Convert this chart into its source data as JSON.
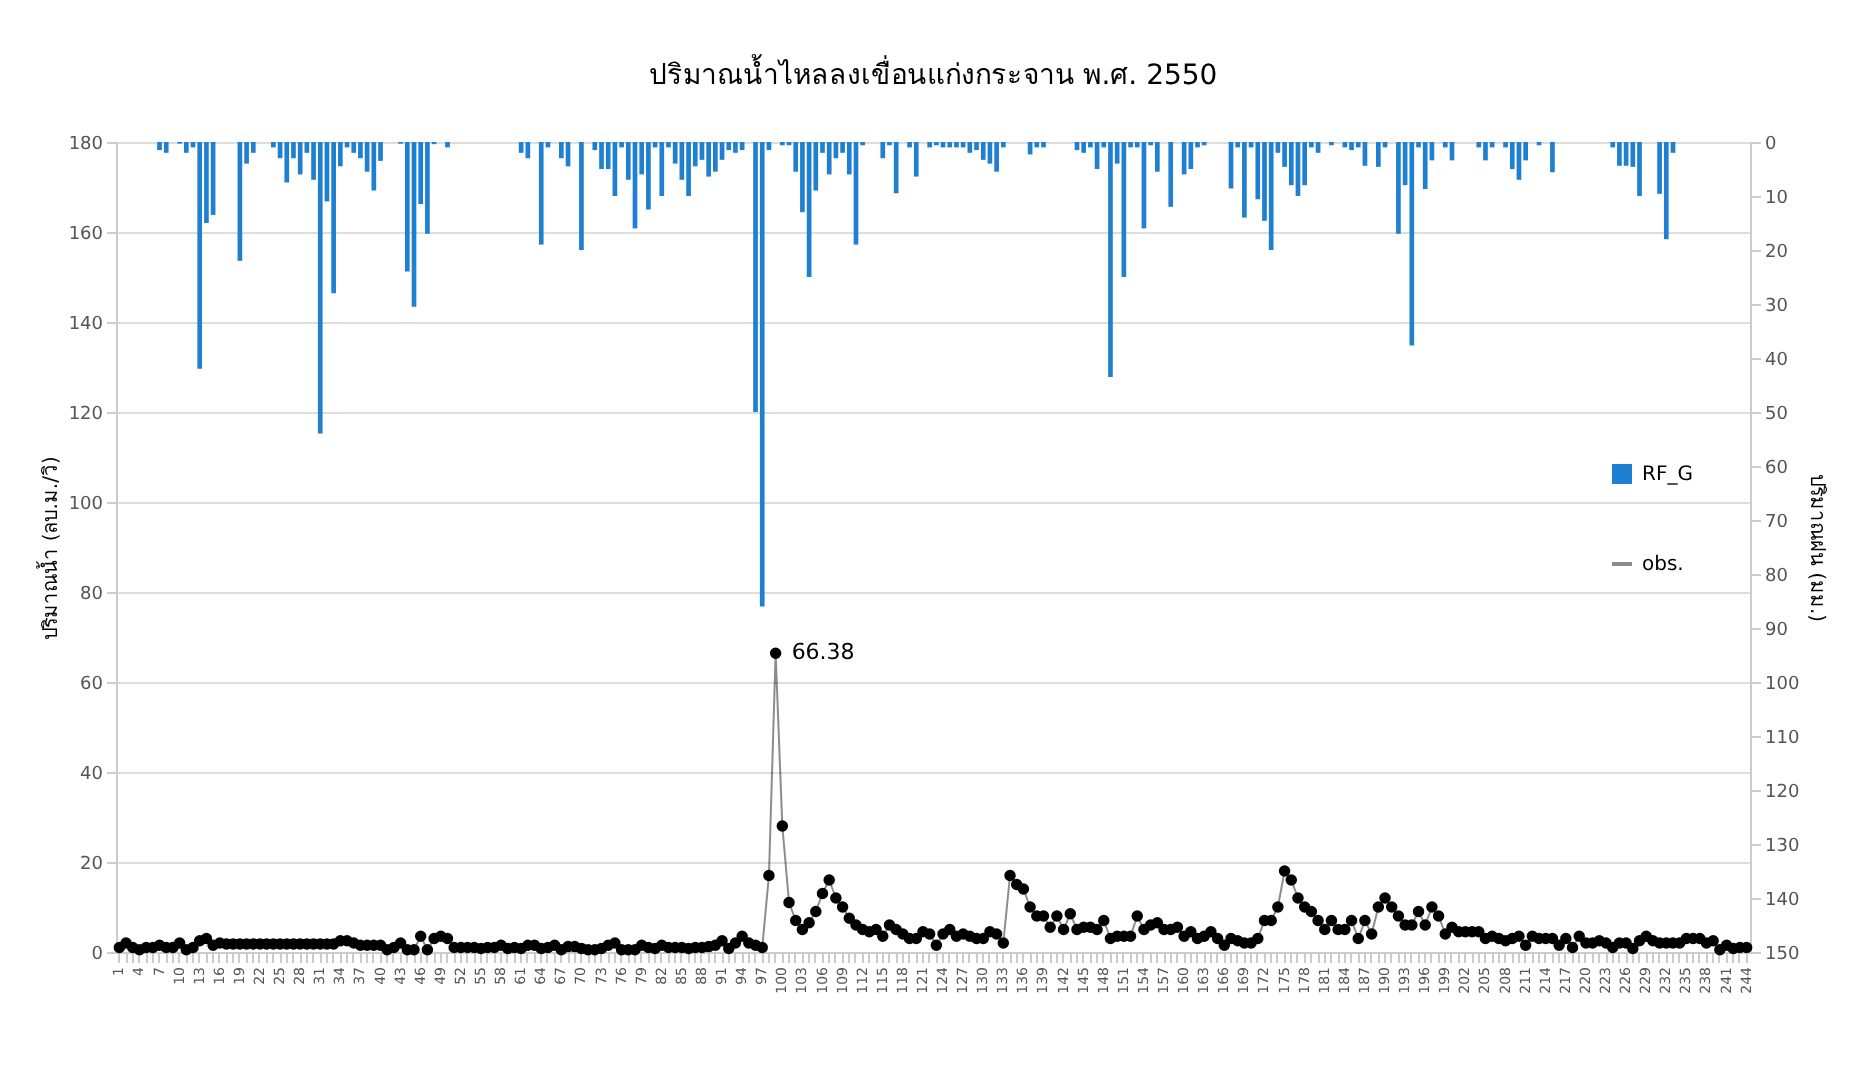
{
  "chart_data": {
    "type": "line",
    "title": "ปริมาณน้ำไหลลงเขื่อนแก่งกระจาน พ.ศ. 2550",
    "ylabel": "ปริมาณน้ำ (ลบ.ม./วิ)",
    "y2label": "ปริมาณฝน (มม.)",
    "categories": [
      "1",
      null,
      null,
      "4",
      null,
      null,
      "7",
      null,
      null,
      "10",
      null,
      null,
      "13",
      null,
      null,
      "16",
      null,
      null,
      "19",
      null,
      null,
      "22",
      null,
      null,
      "25",
      null,
      null,
      "28",
      null,
      null,
      "31",
      null,
      null,
      "34",
      null,
      null,
      "37",
      null,
      null,
      "40",
      null,
      null,
      "43",
      null,
      null,
      "46",
      null,
      null,
      "49",
      null,
      null,
      "52",
      null,
      null,
      "55",
      null,
      null,
      "58",
      null,
      null,
      "61",
      null,
      null,
      "64",
      null,
      null,
      "67",
      null,
      null,
      "70",
      null,
      null,
      "73",
      null,
      null,
      "76",
      null,
      null,
      "79",
      null,
      null,
      "82",
      null,
      null,
      "85",
      null,
      null,
      "88",
      null,
      null,
      "91",
      null,
      null,
      "94",
      null,
      null,
      "97",
      null,
      null,
      "100",
      null,
      null,
      "103",
      null,
      null,
      "106",
      null,
      null,
      "109",
      null,
      null,
      "112",
      null,
      null,
      "115",
      null,
      null,
      "118",
      null,
      null,
      "121",
      null,
      null,
      "124",
      null,
      null,
      "127",
      null,
      null,
      "130",
      null,
      null,
      "133",
      null,
      null,
      "136",
      null,
      null,
      "139",
      null,
      null,
      "142",
      null,
      null,
      "145",
      null,
      null,
      "148",
      null,
      null,
      "151",
      null,
      null,
      "154",
      null,
      null,
      "157",
      null,
      null,
      "160",
      null,
      null,
      "163",
      null,
      null,
      "166",
      null,
      null,
      "169",
      null,
      null,
      "172",
      null,
      null,
      "175",
      null,
      null,
      "178",
      null,
      null,
      "181",
      null,
      null,
      "184",
      null,
      null,
      "187",
      null,
      null,
      "190",
      null,
      null,
      "193",
      null,
      null,
      "196",
      null,
      null,
      "199",
      null,
      null,
      "202",
      null,
      null,
      "205",
      null,
      null,
      "208",
      null,
      null,
      "211",
      null,
      null,
      "214",
      null,
      null,
      "217",
      null,
      null,
      "220",
      null,
      null,
      "223",
      null,
      null,
      "226",
      null,
      null,
      "229",
      null,
      null,
      "232",
      null,
      null,
      "235",
      null,
      null,
      "238",
      null,
      null,
      "241",
      null,
      null,
      "244"
    ],
    "series": [
      {
        "name": "RF_G",
        "type": "bar",
        "axis": "y2",
        "color": "#1f7fd0",
        "values": [
          0,
          0,
          0,
          0,
          0,
          0,
          1.5,
          2,
          0,
          0.3,
          2,
          1,
          42,
          15,
          13.5,
          0,
          0,
          0,
          22,
          4,
          2,
          0,
          0,
          1,
          3,
          7.5,
          3,
          6,
          2,
          7,
          54,
          11,
          28,
          4.5,
          1,
          2,
          3,
          5.5,
          9,
          3.5,
          0,
          0,
          0.3,
          24,
          30.5,
          11.5,
          17,
          0.4,
          0,
          1,
          0,
          0,
          0,
          0,
          0,
          0,
          0,
          0,
          0,
          0,
          2,
          3,
          0,
          19,
          1,
          0,
          3,
          4.5,
          0,
          20,
          0,
          1.5,
          5,
          5,
          10,
          1,
          7,
          16,
          6,
          12.5,
          1,
          10,
          1,
          4,
          7,
          10,
          4.5,
          3.3,
          6.4,
          5.5,
          3.3,
          1.5,
          2,
          1.5,
          0,
          50,
          86,
          1.5,
          0,
          0.6,
          0.6,
          5.5,
          13,
          25,
          9,
          2,
          6,
          3,
          2,
          6,
          19,
          0.6,
          0,
          0,
          3,
          0.6,
          9.5,
          0,
          1,
          6.4,
          0,
          1,
          0.6,
          1,
          1,
          1,
          1,
          2,
          1.5,
          3.3,
          4,
          5.5,
          1,
          0,
          0,
          0,
          2.3,
          1,
          1,
          0,
          0,
          0,
          0,
          1.5,
          2,
          1,
          5,
          1,
          43.5,
          4,
          25,
          1,
          1,
          16,
          0.6,
          5.5,
          0,
          12,
          0,
          6,
          5,
          1,
          0.6,
          0,
          0,
          0,
          8.6,
          1,
          14,
          1,
          10.6,
          14.6,
          20,
          2,
          4.6,
          8,
          10,
          8,
          1,
          2,
          0,
          0.6,
          0,
          1,
          1.5,
          1,
          4.4,
          0,
          4.6,
          1,
          0,
          17,
          8,
          37.7,
          1,
          8.7,
          3.4,
          0,
          1,
          3.4,
          0,
          0,
          0,
          1,
          3.4,
          1,
          0,
          1,
          5,
          7,
          3.4,
          0,
          0.6,
          0,
          5.6,
          0,
          0,
          0,
          0,
          0,
          0,
          0,
          0,
          1,
          4.4,
          4.4,
          4.6,
          10,
          0,
          0,
          9.6,
          18,
          2,
          0,
          0,
          0,
          0,
          0,
          0,
          0,
          0,
          0,
          0,
          0
        ]
      },
      {
        "name": "obs.",
        "color": "#000000",
        "values": [
          1,
          2,
          1,
          0.5,
          1,
          1,
          1.5,
          1,
          1,
          2,
          0.5,
          1,
          2.5,
          3,
          1.5,
          2,
          1.8,
          1.8,
          1.8,
          1.8,
          1.8,
          1.8,
          1.8,
          1.8,
          1.8,
          1.8,
          1.8,
          1.8,
          1.8,
          1.8,
          1.8,
          1.8,
          1.8,
          2.5,
          2.5,
          2,
          1.5,
          1.5,
          1.5,
          1.5,
          0.5,
          1,
          2,
          0.5,
          0.5,
          3.5,
          0.5,
          3,
          3.5,
          3,
          1,
          1,
          1,
          1,
          0.8,
          1,
          1,
          1.5,
          0.8,
          1,
          0.8,
          1.5,
          1.5,
          0.8,
          1,
          1.5,
          0.5,
          1.2,
          1.2,
          0.8,
          0.5,
          0.5,
          0.8,
          1.5,
          2,
          0.5,
          0.5,
          0.5,
          1.5,
          1,
          0.8,
          1.5,
          1,
          1,
          1,
          0.8,
          1,
          1,
          1.2,
          1.5,
          2.5,
          0.8,
          2,
          3.5,
          2,
          1.5,
          1,
          17,
          66.38,
          28,
          11,
          7,
          5,
          6.5,
          9,
          13,
          16,
          12,
          10,
          7.5,
          6,
          5,
          4.5,
          5,
          3.5,
          6,
          5,
          4,
          3,
          3,
          4.5,
          4,
          1.5,
          4,
          5,
          3.5,
          4,
          3.5,
          3,
          3,
          4.5,
          4,
          2,
          17,
          15,
          14,
          10,
          8,
          8,
          5.5,
          8,
          5,
          8.5,
          5,
          5.5,
          5.5,
          5,
          7,
          3,
          3.5,
          3.5,
          3.5,
          8,
          5,
          6,
          6.5,
          5,
          5,
          5.5,
          3.5,
          4.5,
          3,
          3.5,
          4.5,
          3,
          1.5,
          3,
          2.5,
          2,
          2,
          3,
          7,
          7,
          10,
          18,
          16,
          12,
          10,
          9,
          7,
          5,
          7,
          5,
          5,
          7,
          3,
          7,
          4,
          10,
          12,
          10,
          8,
          6,
          6,
          9,
          6,
          10,
          8,
          4,
          5.5,
          4.5,
          4.5,
          4.5,
          4.5,
          3,
          3.5,
          3,
          2.5,
          3,
          3.5,
          1.5,
          3.5,
          3,
          3,
          3,
          1.5,
          3,
          1,
          3.5,
          2,
          2,
          2.5,
          2,
          1,
          2,
          2,
          0.8,
          2.5,
          3.5,
          2.5,
          2,
          2,
          2,
          2,
          3,
          3,
          3,
          2,
          2.5,
          0.5,
          1.5,
          0.8,
          1,
          1
        ],
        "value_labels": [
          null,
          null,
          null,
          null,
          null,
          null,
          null,
          null,
          null,
          null,
          null,
          null,
          null,
          null,
          null,
          null,
          null,
          null,
          null,
          null,
          null,
          null,
          null,
          null,
          null,
          null,
          null,
          null,
          null,
          null,
          null,
          null,
          null,
          null,
          null,
          null,
          null,
          null,
          null,
          null,
          null,
          null,
          null,
          null,
          null,
          null,
          null,
          null,
          null,
          null,
          null,
          null,
          null,
          null,
          null,
          null,
          null,
          null,
          null,
          null,
          null,
          null,
          null,
          null,
          null,
          null,
          null,
          null,
          null,
          null,
          null,
          null,
          null,
          null,
          null,
          null,
          null,
          null,
          null,
          null,
          null,
          null,
          null,
          null,
          null,
          null,
          null,
          null,
          null,
          null,
          null,
          null,
          null,
          null,
          null,
          null,
          null,
          null,
          "66.38",
          null,
          null,
          null,
          null,
          null,
          null,
          null,
          null,
          null,
          null,
          null,
          null,
          null,
          null,
          null,
          null,
          null,
          null,
          null,
          null,
          null,
          null,
          null,
          null,
          null,
          null,
          null,
          null,
          null,
          null,
          null,
          null,
          null,
          null,
          null,
          null,
          null,
          null,
          null,
          null,
          null,
          null,
          null,
          null,
          null,
          null,
          null,
          null,
          null,
          null,
          null,
          null,
          null,
          null,
          null,
          null,
          null,
          null,
          null,
          null,
          null,
          null,
          null,
          null,
          null,
          null,
          null,
          null,
          null,
          null,
          null,
          null,
          null,
          null,
          null,
          null,
          null,
          null,
          null,
          null,
          null,
          null,
          null,
          null,
          null,
          null,
          null,
          null,
          null,
          null,
          null,
          null,
          null,
          null,
          null,
          null,
          null,
          null,
          null,
          null,
          null,
          null,
          null,
          null,
          null,
          null,
          null,
          null,
          null,
          null,
          null,
          null,
          null,
          null,
          null,
          null,
          null,
          null,
          null,
          null,
          null,
          null,
          null,
          null,
          null,
          null,
          null,
          null,
          null,
          null,
          null,
          null,
          null,
          null,
          null,
          null,
          null,
          null,
          null,
          null,
          null,
          null,
          null,
          null,
          null
        ]
      }
    ],
    "ylim": [
      0,
      180
    ],
    "yticks": [
      0,
      20,
      40,
      60,
      80,
      100,
      120,
      140,
      160,
      180
    ],
    "y2lim": [
      150,
      0
    ],
    "y2ticks": [
      0,
      10,
      20,
      30,
      40,
      50,
      60,
      70,
      80,
      90,
      100,
      110,
      120,
      130,
      140,
      150
    ],
    "grid": "y",
    "legend": "right",
    "marker": "circle"
  }
}
